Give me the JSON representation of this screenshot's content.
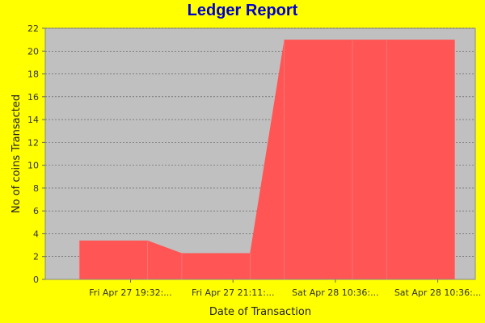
{
  "chart_data": {
    "type": "area",
    "title": "Ledger Report",
    "xlabel": "Date of Transaction",
    "ylabel": "No of coins Transacted",
    "ylim": [
      0,
      22
    ],
    "y_ticks": [
      0,
      2,
      4,
      6,
      8,
      10,
      12,
      14,
      16,
      18,
      20,
      22
    ],
    "grid": true,
    "x_tick_labels": [
      "Fri Apr 27 19:32:...",
      "Fri Apr 27 21:11:...",
      "Sat Apr 28 10:36:...",
      "Sat Apr 28 10:36:..."
    ],
    "categories": [
      "Fri Apr 27 19:32:...",
      "Fri Apr 27 21:11:...",
      "Sat Apr 28 10:36:...",
      "Sat Apr 28 10:36:..."
    ],
    "series": [
      {
        "values": [
          3.4,
          2.3,
          21,
          21
        ]
      }
    ],
    "colors": {
      "background": "#ffff00",
      "plot_background": "#c0c0c0",
      "area_fill": "#ff5555",
      "title": "#0000cc",
      "grid": "#555555"
    }
  }
}
